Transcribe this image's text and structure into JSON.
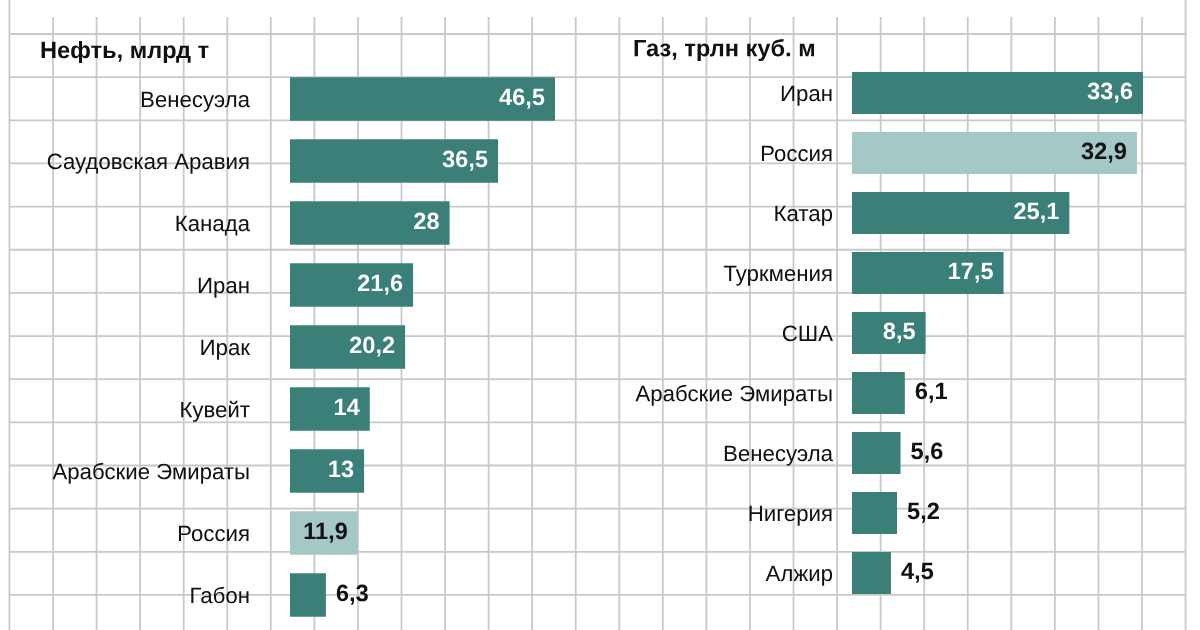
{
  "chart_data": [
    {
      "type": "bar",
      "orientation": "horizontal",
      "title": "Нефть, млрд т",
      "categories": [
        "Венесуэла",
        "Саудовская Аравия",
        "Канада",
        "Иран",
        "Ирак",
        "Кувейт",
        "Арабские Эмираты",
        "Россия",
        "Габон"
      ],
      "values": [
        46.5,
        36.5,
        28,
        21.6,
        20.2,
        14,
        13,
        11.9,
        6.3
      ],
      "colors": [
        "#3b7f79",
        "#3b7f79",
        "#3b7f79",
        "#3b7f79",
        "#3b7f79",
        "#3b7f79",
        "#3b7f79",
        "#a4c8c5",
        "#3b7f79"
      ],
      "value_labels": [
        "46,5",
        "36,5",
        "28",
        "21,6",
        "20,2",
        "14",
        "13",
        "11,9",
        "6,3"
      ],
      "tick_labels": "y",
      "grid": true
    },
    {
      "type": "bar",
      "orientation": "horizontal",
      "title": "Газ, трлн куб. м",
      "categories": [
        "Иран",
        "Россия",
        "Катар",
        "Туркмения",
        "США",
        "Арабские Эмираты",
        "Венесуэла",
        "Нигерия",
        "Алжир"
      ],
      "values": [
        33.6,
        32.9,
        25.1,
        17.5,
        8.5,
        6.1,
        5.6,
        5.2,
        4.5
      ],
      "colors": [
        "#3b7f79",
        "#a4c8c5",
        "#3b7f79",
        "#3b7f79",
        "#3b7f79",
        "#3b7f79",
        "#3b7f79",
        "#3b7f79",
        "#3b7f79"
      ],
      "value_labels": [
        "33,6",
        "32,9",
        "25,1",
        "17,5",
        "8,5",
        "6,1",
        "5,6",
        "5,2",
        "4,5"
      ],
      "tick_labels": "y",
      "grid": true
    }
  ]
}
